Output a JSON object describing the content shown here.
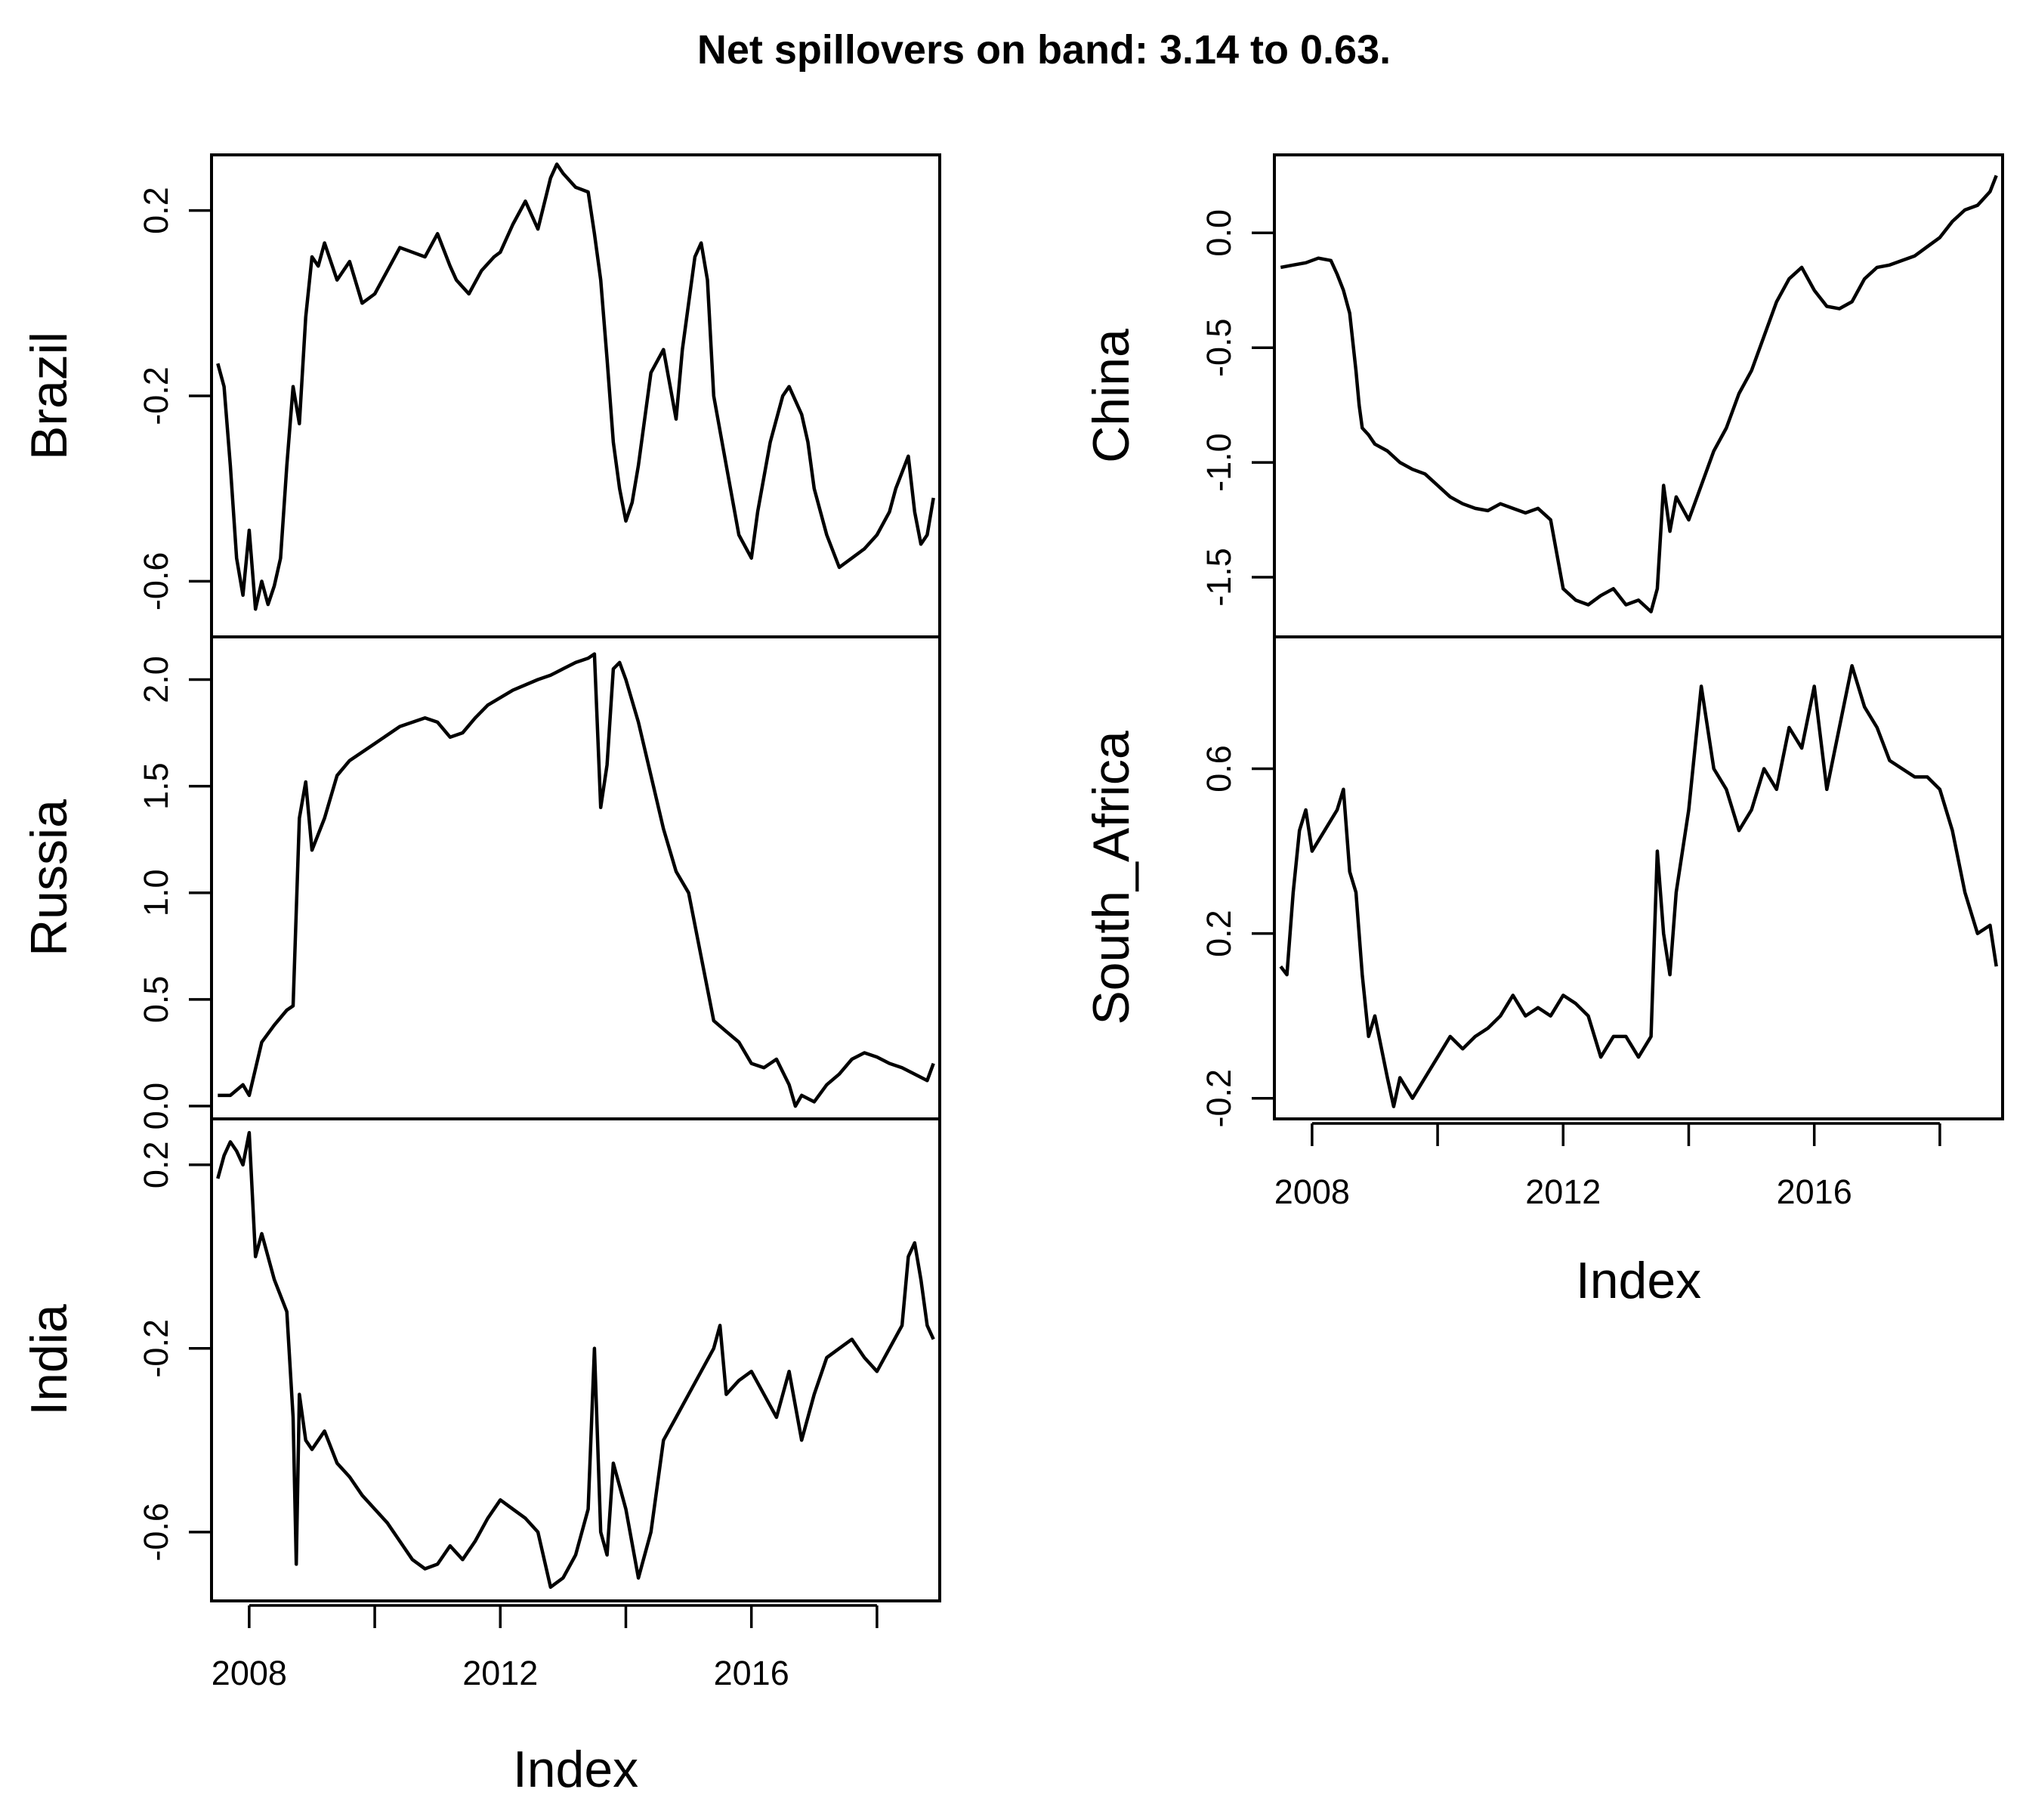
{
  "chart_data": {
    "type": "line",
    "title": "Net spillovers on band: 3.14 to 0.63.",
    "x_range": [
      2007.4,
      2019.0
    ],
    "x_ticks": [
      2008,
      2010,
      2012,
      2014,
      2016,
      2018
    ],
    "x_tick_labels": [
      "2008",
      "2012",
      "2016"
    ],
    "xlabel": "Index",
    "panels": [
      {
        "name": "Brazil",
        "column": "left",
        "ylim": [
          -0.72,
          0.32
        ],
        "y_ticks": [
          0.2,
          -0.2,
          -0.6
        ],
        "y_tick_labels": [
          "0.2",
          "-0.2",
          "-0.6"
        ],
        "x": [
          2007.5,
          2007.6,
          2007.7,
          2007.8,
          2007.9,
          2008.0,
          2008.1,
          2008.2,
          2008.3,
          2008.4,
          2008.5,
          2008.6,
          2008.7,
          2008.8,
          2008.9,
          2009.0,
          2009.1,
          2009.2,
          2009.4,
          2009.6,
          2009.8,
          2010.0,
          2010.2,
          2010.4,
          2010.6,
          2010.8,
          2011.0,
          2011.2,
          2011.3,
          2011.5,
          2011.7,
          2011.9,
          2012.0,
          2012.2,
          2012.4,
          2012.6,
          2012.8,
          2012.9,
          2013.0,
          2013.2,
          2013.4,
          2013.5,
          2013.6,
          2013.7,
          2013.8,
          2013.9,
          2014.0,
          2014.1,
          2014.2,
          2014.4,
          2014.6,
          2014.8,
          2014.9,
          2015.0,
          2015.1,
          2015.2,
          2015.3,
          2015.4,
          2015.6,
          2015.8,
          2016.0,
          2016.1,
          2016.3,
          2016.5,
          2016.6,
          2016.8,
          2016.9,
          2017.0,
          2017.2,
          2017.4,
          2017.6,
          2017.8,
          2018.0,
          2018.2,
          2018.3,
          2018.5,
          2018.6,
          2018.7,
          2018.8,
          2018.9
        ],
        "values": [
          -0.13,
          -0.18,
          -0.35,
          -0.55,
          -0.63,
          -0.49,
          -0.66,
          -0.6,
          -0.65,
          -0.61,
          -0.55,
          -0.35,
          -0.18,
          -0.26,
          -0.03,
          0.1,
          0.08,
          0.13,
          0.05,
          0.09,
          0.0,
          0.02,
          0.07,
          0.12,
          0.11,
          0.1,
          0.15,
          0.08,
          0.05,
          0.02,
          0.07,
          0.1,
          0.11,
          0.17,
          0.22,
          0.16,
          0.27,
          0.3,
          0.28,
          0.25,
          0.24,
          0.15,
          0.05,
          -0.12,
          -0.3,
          -0.4,
          -0.47,
          -0.43,
          -0.35,
          -0.15,
          -0.1,
          -0.25,
          -0.1,
          0.0,
          0.1,
          0.13,
          0.05,
          -0.2,
          -0.35,
          -0.5,
          -0.55,
          -0.45,
          -0.3,
          -0.2,
          -0.18,
          -0.24,
          -0.3,
          -0.4,
          -0.5,
          -0.57,
          -0.55,
          -0.53,
          -0.5,
          -0.45,
          -0.4,
          -0.33,
          -0.45,
          -0.52,
          -0.5,
          -0.42
        ]
      },
      {
        "name": "Russia",
        "column": "left",
        "ylim": [
          -0.06,
          2.2
        ],
        "y_ticks": [
          2.0,
          1.5,
          1.0,
          0.5,
          0.0
        ],
        "y_tick_labels": [
          "2.0",
          "1.5",
          "1.0",
          "0.5",
          "0.0"
        ],
        "x": [
          2007.5,
          2007.7,
          2007.9,
          2008.0,
          2008.2,
          2008.4,
          2008.6,
          2008.7,
          2008.8,
          2008.9,
          2009.0,
          2009.2,
          2009.4,
          2009.6,
          2010.0,
          2010.4,
          2010.8,
          2011.0,
          2011.2,
          2011.4,
          2011.6,
          2011.8,
          2012.2,
          2012.6,
          2012.8,
          2013.0,
          2013.2,
          2013.4,
          2013.5,
          2013.6,
          2013.7,
          2013.8,
          2013.9,
          2014.0,
          2014.2,
          2014.4,
          2014.6,
          2014.8,
          2015.0,
          2015.2,
          2015.4,
          2015.6,
          2015.8,
          2016.0,
          2016.2,
          2016.4,
          2016.6,
          2016.7,
          2016.8,
          2017.0,
          2017.2,
          2017.4,
          2017.6,
          2017.8,
          2018.0,
          2018.2,
          2018.4,
          2018.6,
          2018.8,
          2018.9
        ],
        "values": [
          0.05,
          0.05,
          0.1,
          0.05,
          0.3,
          0.38,
          0.45,
          0.47,
          1.35,
          1.52,
          1.2,
          1.35,
          1.55,
          1.62,
          1.7,
          1.78,
          1.82,
          1.8,
          1.73,
          1.75,
          1.82,
          1.88,
          1.95,
          2.0,
          2.02,
          2.05,
          2.08,
          2.1,
          2.12,
          1.4,
          1.6,
          2.05,
          2.08,
          2.0,
          1.8,
          1.55,
          1.3,
          1.1,
          1.0,
          0.7,
          0.4,
          0.35,
          0.3,
          0.2,
          0.18,
          0.22,
          0.1,
          0.0,
          0.05,
          0.02,
          0.1,
          0.15,
          0.22,
          0.25,
          0.23,
          0.2,
          0.18,
          0.15,
          0.12,
          0.2
        ]
      },
      {
        "name": "India",
        "column": "left",
        "ylim": [
          -0.75,
          0.3
        ],
        "y_ticks": [
          0.2,
          -0.2,
          -0.6
        ],
        "y_tick_labels": [
          "0.2",
          "-0.2",
          "-0.6"
        ],
        "x": [
          2007.5,
          2007.6,
          2007.7,
          2007.8,
          2007.9,
          2008.0,
          2008.1,
          2008.2,
          2008.4,
          2008.6,
          2008.7,
          2008.75,
          2008.8,
          2008.9,
          2009.0,
          2009.2,
          2009.4,
          2009.6,
          2009.8,
          2010.0,
          2010.2,
          2010.4,
          2010.6,
          2010.8,
          2011.0,
          2011.2,
          2011.4,
          2011.6,
          2011.8,
          2012.0,
          2012.2,
          2012.4,
          2012.6,
          2012.8,
          2013.0,
          2013.2,
          2013.4,
          2013.5,
          2013.6,
          2013.7,
          2013.8,
          2014.0,
          2014.2,
          2014.4,
          2014.6,
          2014.8,
          2015.0,
          2015.2,
          2015.4,
          2015.5,
          2015.6,
          2015.8,
          2016.0,
          2016.2,
          2016.4,
          2016.6,
          2016.8,
          2017.0,
          2017.2,
          2017.4,
          2017.6,
          2017.8,
          2018.0,
          2018.2,
          2018.4,
          2018.5,
          2018.6,
          2018.7,
          2018.8,
          2018.9
        ],
        "values": [
          0.17,
          0.22,
          0.25,
          0.23,
          0.2,
          0.27,
          0.0,
          0.05,
          -0.05,
          -0.12,
          -0.35,
          -0.67,
          -0.3,
          -0.4,
          -0.42,
          -0.38,
          -0.45,
          -0.48,
          -0.52,
          -0.55,
          -0.58,
          -0.62,
          -0.66,
          -0.68,
          -0.67,
          -0.63,
          -0.66,
          -0.62,
          -0.57,
          -0.53,
          -0.55,
          -0.57,
          -0.6,
          -0.72,
          -0.7,
          -0.65,
          -0.55,
          -0.2,
          -0.6,
          -0.65,
          -0.45,
          -0.55,
          -0.7,
          -0.6,
          -0.4,
          -0.35,
          -0.3,
          -0.25,
          -0.2,
          -0.15,
          -0.3,
          -0.27,
          -0.25,
          -0.3,
          -0.35,
          -0.25,
          -0.4,
          -0.3,
          -0.22,
          -0.2,
          -0.18,
          -0.22,
          -0.25,
          -0.2,
          -0.15,
          0.0,
          0.03,
          -0.05,
          -0.15,
          -0.18
        ]
      },
      {
        "name": "China",
        "column": "right",
        "ylim": [
          -1.76,
          0.34
        ],
        "y_ticks": [
          0.0,
          -0.5,
          -1.0,
          -1.5
        ],
        "y_tick_labels": [
          "0.0",
          "-0.5",
          "-1.0",
          "-1.5"
        ],
        "x": [
          2007.5,
          2007.7,
          2007.9,
          2008.1,
          2008.3,
          2008.4,
          2008.5,
          2008.6,
          2008.7,
          2008.75,
          2008.8,
          2008.9,
          2009.0,
          2009.2,
          2009.4,
          2009.6,
          2009.8,
          2010.0,
          2010.2,
          2010.4,
          2010.6,
          2010.8,
          2011.0,
          2011.2,
          2011.4,
          2011.6,
          2011.8,
          2011.9,
          2012.0,
          2012.2,
          2012.4,
          2012.6,
          2012.8,
          2013.0,
          2013.2,
          2013.4,
          2013.5,
          2013.6,
          2013.7,
          2013.8,
          2014.0,
          2014.2,
          2014.4,
          2014.6,
          2014.8,
          2015.0,
          2015.2,
          2015.4,
          2015.6,
          2015.8,
          2016.0,
          2016.2,
          2016.4,
          2016.6,
          2016.8,
          2017.0,
          2017.2,
          2017.4,
          2017.6,
          2017.8,
          2018.0,
          2018.2,
          2018.4,
          2018.6,
          2018.8,
          2018.9
        ],
        "values": [
          -0.15,
          -0.14,
          -0.13,
          -0.11,
          -0.12,
          -0.18,
          -0.25,
          -0.35,
          -0.6,
          -0.75,
          -0.85,
          -0.88,
          -0.92,
          -0.95,
          -1.0,
          -1.03,
          -1.05,
          -1.1,
          -1.15,
          -1.18,
          -1.2,
          -1.21,
          -1.18,
          -1.2,
          -1.22,
          -1.2,
          -1.25,
          -1.4,
          -1.55,
          -1.6,
          -1.62,
          -1.58,
          -1.55,
          -1.62,
          -1.6,
          -1.65,
          -1.55,
          -1.1,
          -1.3,
          -1.15,
          -1.25,
          -1.1,
          -0.95,
          -0.85,
          -0.7,
          -0.6,
          -0.45,
          -0.3,
          -0.2,
          -0.15,
          -0.25,
          -0.32,
          -0.33,
          -0.3,
          -0.2,
          -0.15,
          -0.14,
          -0.12,
          -0.1,
          -0.06,
          -0.02,
          0.05,
          0.1,
          0.12,
          0.18,
          0.25
        ]
      },
      {
        "name": "South_Africa",
        "column": "right",
        "ylim": [
          -0.25,
          0.92
        ],
        "y_ticks": [
          0.6,
          0.2,
          -0.2
        ],
        "y_tick_labels": [
          "0.6",
          "0.2",
          "-0.2"
        ],
        "x": [
          2007.5,
          2007.6,
          2007.7,
          2007.8,
          2007.9,
          2008.0,
          2008.2,
          2008.4,
          2008.5,
          2008.6,
          2008.7,
          2008.8,
          2008.9,
          2009.0,
          2009.2,
          2009.3,
          2009.4,
          2009.6,
          2009.8,
          2010.0,
          2010.2,
          2010.4,
          2010.6,
          2010.8,
          2011.0,
          2011.2,
          2011.4,
          2011.6,
          2011.8,
          2012.0,
          2012.2,
          2012.4,
          2012.6,
          2012.8,
          2013.0,
          2013.2,
          2013.4,
          2013.5,
          2013.6,
          2013.7,
          2013.8,
          2014.0,
          2014.2,
          2014.4,
          2014.6,
          2014.8,
          2015.0,
          2015.2,
          2015.4,
          2015.6,
          2015.8,
          2016.0,
          2016.2,
          2016.4,
          2016.6,
          2016.8,
          2017.0,
          2017.2,
          2017.4,
          2017.6,
          2017.8,
          2018.0,
          2018.2,
          2018.4,
          2018.6,
          2018.8,
          2018.9
        ],
        "values": [
          0.12,
          0.1,
          0.3,
          0.45,
          0.5,
          0.4,
          0.45,
          0.5,
          0.55,
          0.35,
          0.3,
          0.1,
          -0.05,
          0.0,
          -0.15,
          -0.22,
          -0.15,
          -0.2,
          -0.15,
          -0.1,
          -0.05,
          -0.08,
          -0.05,
          -0.03,
          0.0,
          0.05,
          0.0,
          0.02,
          0.0,
          0.05,
          0.03,
          0.0,
          -0.1,
          -0.05,
          -0.05,
          -0.1,
          -0.05,
          0.4,
          0.2,
          0.1,
          0.3,
          0.5,
          0.8,
          0.6,
          0.55,
          0.45,
          0.5,
          0.6,
          0.55,
          0.7,
          0.65,
          0.8,
          0.55,
          0.7,
          0.85,
          0.75,
          0.7,
          0.62,
          0.6,
          0.58,
          0.58,
          0.55,
          0.45,
          0.3,
          0.2,
          0.22,
          0.12
        ]
      }
    ]
  }
}
